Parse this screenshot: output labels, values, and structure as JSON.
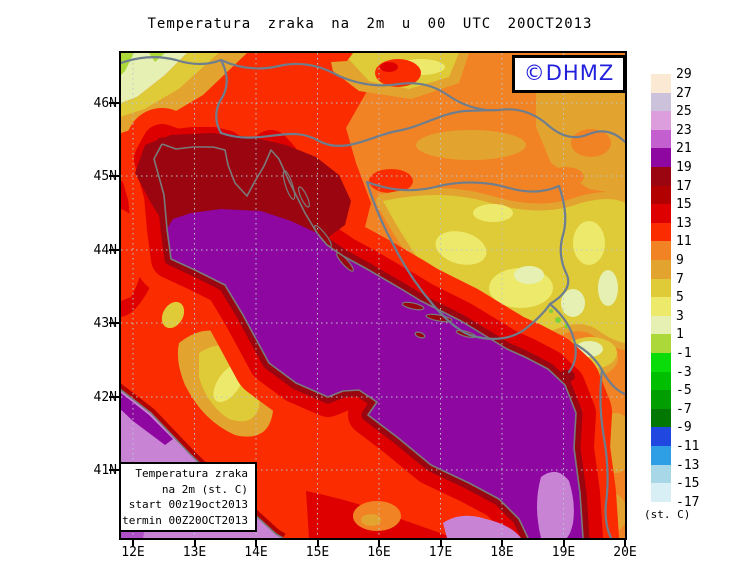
{
  "title": "Temperatura zraka na 2m u 00 UTC 20OCT2013",
  "watermark": {
    "text": "©DHMZ",
    "color": "#2121DD"
  },
  "info_box": {
    "lines": [
      "Temperatura zraka",
      "na 2m (st. C)",
      "start 00z19oct2013",
      "termin 00Z20OCT2013"
    ]
  },
  "axes": {
    "lat": [
      "46N",
      "45N",
      "44N",
      "43N",
      "42N",
      "41N"
    ],
    "lon": [
      "12E",
      "13E",
      "14E",
      "15E",
      "16E",
      "17E",
      "18E",
      "19E",
      "20E"
    ]
  },
  "colorbar": {
    "unit": "(st. C)",
    "labels": [
      "29",
      "27",
      "25",
      "23",
      "21",
      "19",
      "17",
      "15",
      "13",
      "11",
      "9",
      "7",
      "5",
      "3",
      "1",
      "-1",
      "-3",
      "-5",
      "-7",
      "-9",
      "-11",
      "-13",
      "-15",
      "-17"
    ],
    "colors": [
      "#FBE9D3",
      "#CDC2DB",
      "#DC9EDC",
      "#C35FCE",
      "#8E07A0",
      "#9A0510",
      "#B20000",
      "#DE0000",
      "#FB2C00",
      "#F28324",
      "#E2A42E",
      "#DFCA37",
      "#EDE96B",
      "#E5F0B2",
      "#ACD939",
      "#0ADC0A",
      "#00BE00",
      "#009E00",
      "#027802",
      "#2048E0",
      "#2F9FE5",
      "#A8D8E8",
      "#D8EFF6"
    ]
  },
  "chart_data": {
    "type": "filled-contour-map",
    "field": "Air temperature at 2 m (st. C)",
    "valid_time": "00 UTC 20OCT2013",
    "run_start": "00z19oct2013",
    "contour_interval": 2,
    "scale_range": [
      -17,
      29
    ],
    "lon_range": [
      "12E",
      "20E"
    ],
    "lat_range": [
      "41N",
      "46N"
    ],
    "estimated_values": {
      "adriatic_sea": "19-23",
      "tyrrhenian_ionian_sea": "21-25",
      "po_valley_north_adriatic_coast": "13-19",
      "alps_northwest": "1-5",
      "bosnia_inland": "3-7",
      "pannonian_plain": "7-11"
    }
  }
}
